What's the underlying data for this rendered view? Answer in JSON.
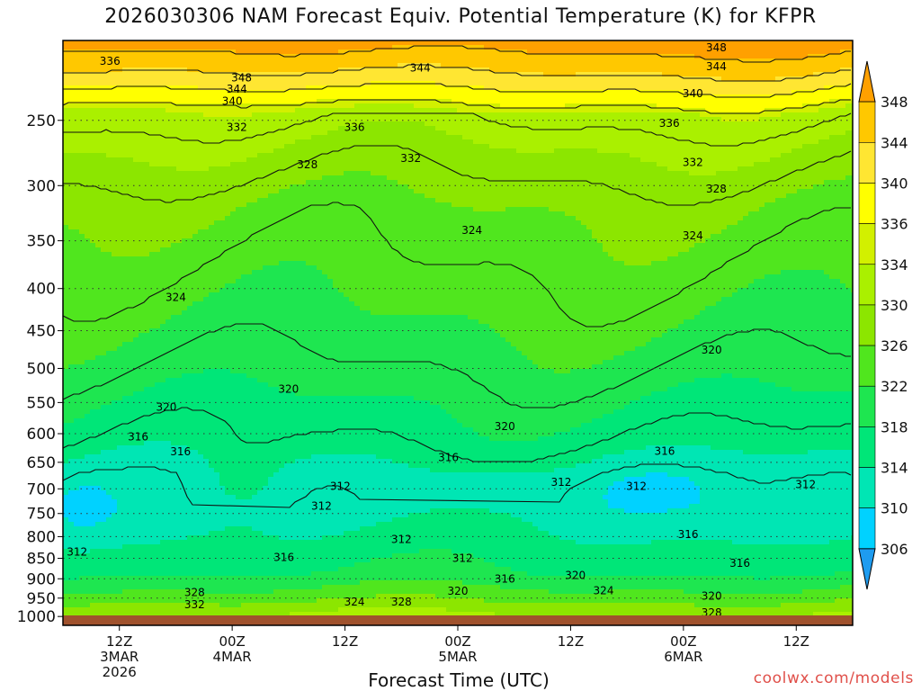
{
  "chart_data": {
    "type": "heatmap",
    "title": "2026030306 NAM Forecast Equiv. Potential Temperature (K) for KFPR",
    "xlabel": "Forecast Time (UTC)",
    "ylabel": "",
    "credit": "coolwx.com/models",
    "x_ticks": [
      {
        "hour": 6,
        "lines": [
          "12Z",
          "3MAR",
          "2026"
        ]
      },
      {
        "hour": 18,
        "lines": [
          "00Z",
          "4MAR"
        ]
      },
      {
        "hour": 30,
        "lines": [
          "12Z"
        ]
      },
      {
        "hour": 42,
        "lines": [
          "00Z",
          "5MAR"
        ]
      },
      {
        "hour": 54,
        "lines": [
          "12Z"
        ]
      },
      {
        "hour": 66,
        "lines": [
          "00Z",
          "6MAR"
        ]
      },
      {
        "hour": 78,
        "lines": [
          "12Z"
        ]
      }
    ],
    "xlim_hours": [
      0,
      84
    ],
    "y_ticks": [
      250,
      300,
      350,
      400,
      450,
      500,
      550,
      600,
      650,
      700,
      750,
      800,
      850,
      900,
      950,
      1000
    ],
    "ylim_hpa": [
      1025,
      200
    ],
    "y_scale": "log",
    "colorbar": {
      "ticks": [
        306,
        310,
        314,
        318,
        322,
        326,
        330,
        334,
        336,
        340,
        344,
        348
      ],
      "colors": [
        "#1e9cf0",
        "#00d2ff",
        "#00e6b4",
        "#00e678",
        "#1ee650",
        "#50e61e",
        "#8ce600",
        "#aaf000",
        "#d2f000",
        "#ffff00",
        "#ffe632",
        "#ffc800",
        "#ffa000"
      ]
    },
    "contour_labels": [
      {
        "hour": 5,
        "p": 212,
        "v": "336"
      },
      {
        "hour": 19,
        "p": 222,
        "v": "348"
      },
      {
        "hour": 18.5,
        "p": 229,
        "v": "344"
      },
      {
        "hour": 18,
        "p": 237,
        "v": "340"
      },
      {
        "hour": 18.5,
        "p": 255,
        "v": "332"
      },
      {
        "hour": 31,
        "p": 255,
        "v": "336"
      },
      {
        "hour": 26,
        "p": 283,
        "v": "328"
      },
      {
        "hour": 37,
        "p": 278,
        "v": "332"
      },
      {
        "hour": 38,
        "p": 216,
        "v": "344"
      },
      {
        "hour": 69.5,
        "p": 204,
        "v": "348"
      },
      {
        "hour": 69.5,
        "p": 215,
        "v": "344"
      },
      {
        "hour": 67,
        "p": 232,
        "v": "340"
      },
      {
        "hour": 64.5,
        "p": 252,
        "v": "336"
      },
      {
        "hour": 67,
        "p": 281,
        "v": "332"
      },
      {
        "hour": 69.5,
        "p": 303,
        "v": "328"
      },
      {
        "hour": 43.5,
        "p": 340,
        "v": "324"
      },
      {
        "hour": 67,
        "p": 345,
        "v": "324"
      },
      {
        "hour": 12,
        "p": 410,
        "v": "324"
      },
      {
        "hour": 69,
        "p": 475,
        "v": "320"
      },
      {
        "hour": 24,
        "p": 530,
        "v": "320"
      },
      {
        "hour": 11,
        "p": 557,
        "v": "320"
      },
      {
        "hour": 47,
        "p": 588,
        "v": "320"
      },
      {
        "hour": 8,
        "p": 605,
        "v": "316"
      },
      {
        "hour": 12.5,
        "p": 631,
        "v": "316"
      },
      {
        "hour": 41,
        "p": 641,
        "v": "316"
      },
      {
        "hour": 64,
        "p": 630,
        "v": "316"
      },
      {
        "hour": 29.5,
        "p": 695,
        "v": "312"
      },
      {
        "hour": 53,
        "p": 687,
        "v": "312"
      },
      {
        "hour": 61,
        "p": 695,
        "v": "312"
      },
      {
        "hour": 79,
        "p": 692,
        "v": "312"
      },
      {
        "hour": 27.5,
        "p": 735,
        "v": "312"
      },
      {
        "hour": 36,
        "p": 806,
        "v": "312"
      },
      {
        "hour": 42.5,
        "p": 850,
        "v": "312"
      },
      {
        "hour": 1.5,
        "p": 835,
        "v": "312"
      },
      {
        "hour": 23.5,
        "p": 848,
        "v": "316"
      },
      {
        "hour": 66.5,
        "p": 795,
        "v": "316"
      },
      {
        "hour": 72,
        "p": 862,
        "v": "316"
      },
      {
        "hour": 47,
        "p": 900,
        "v": "316"
      },
      {
        "hour": 54.5,
        "p": 892,
        "v": "320"
      },
      {
        "hour": 42,
        "p": 932,
        "v": "320"
      },
      {
        "hour": 57.5,
        "p": 930,
        "v": "324"
      },
      {
        "hour": 69,
        "p": 945,
        "v": "320"
      },
      {
        "hour": 14,
        "p": 935,
        "v": "328"
      },
      {
        "hour": 14,
        "p": 967,
        "v": "332"
      },
      {
        "hour": 31,
        "p": 960,
        "v": "324"
      },
      {
        "hour": 36,
        "p": 960,
        "v": "328"
      },
      {
        "hour": 69,
        "p": 990,
        "v": "328"
      }
    ]
  }
}
